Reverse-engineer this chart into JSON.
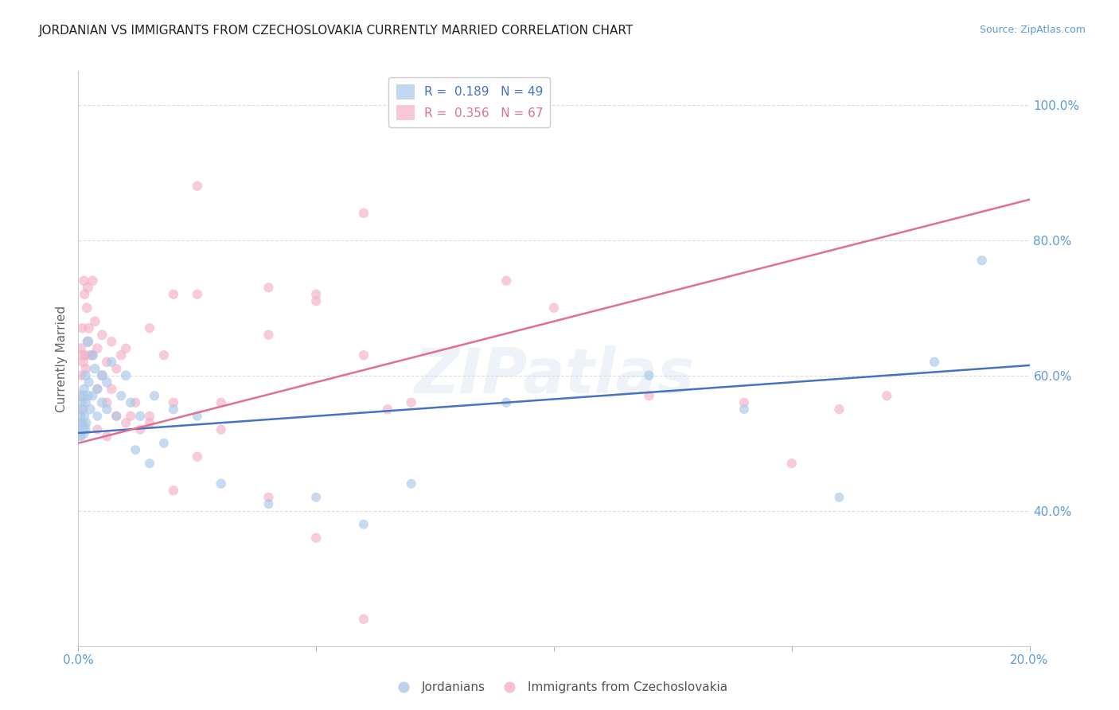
{
  "title": "JORDANIAN VS IMMIGRANTS FROM CZECHOSLOVAKIA CURRENTLY MARRIED CORRELATION CHART",
  "source": "Source: ZipAtlas.com",
  "ylabel": "Currently Married",
  "yticks": [
    0.4,
    0.6,
    0.8,
    1.0
  ],
  "ytick_labels": [
    "40.0%",
    "60.0%",
    "80.0%",
    "100.0%"
  ],
  "legend_title_blue": "Jordanians",
  "legend_title_pink": "Immigrants from Czechoslovakia",
  "blue_color": "#a8c8e8",
  "pink_color": "#f4b0c8",
  "blue_line_color": "#4472c4",
  "pink_line_color": "#e07090",
  "watermark_text": "ZIPatlas",
  "blue_intercept": 0.515,
  "blue_slope": 0.5,
  "pink_intercept": 0.5,
  "pink_slope": 1.8,
  "blue_points_x": [
    0.0002,
    0.0004,
    0.0005,
    0.0006,
    0.0007,
    0.0008,
    0.001,
    0.001,
    0.0012,
    0.0013,
    0.0015,
    0.0016,
    0.0017,
    0.002,
    0.002,
    0.0022,
    0.0025,
    0.003,
    0.003,
    0.0035,
    0.004,
    0.004,
    0.005,
    0.005,
    0.006,
    0.006,
    0.007,
    0.008,
    0.009,
    0.01,
    0.011,
    0.012,
    0.013,
    0.015,
    0.016,
    0.018,
    0.02,
    0.025,
    0.03,
    0.04,
    0.05,
    0.06,
    0.07,
    0.09,
    0.12,
    0.14,
    0.16,
    0.18,
    0.19
  ],
  "blue_points_y": [
    0.52,
    0.54,
    0.51,
    0.55,
    0.53,
    0.56,
    0.52,
    0.57,
    0.58,
    0.54,
    0.6,
    0.56,
    0.53,
    0.65,
    0.57,
    0.59,
    0.55,
    0.63,
    0.57,
    0.61,
    0.54,
    0.58,
    0.56,
    0.6,
    0.55,
    0.59,
    0.62,
    0.54,
    0.57,
    0.6,
    0.56,
    0.49,
    0.54,
    0.47,
    0.57,
    0.5,
    0.55,
    0.54,
    0.44,
    0.41,
    0.42,
    0.38,
    0.44,
    0.56,
    0.6,
    0.55,
    0.42,
    0.62,
    0.77
  ],
  "blue_points_pop": [
    800,
    200,
    150,
    180,
    160,
    140,
    200,
    180,
    160,
    150,
    170,
    160,
    150,
    200,
    180,
    160,
    170,
    180,
    160,
    170,
    150,
    160,
    170,
    180,
    160,
    170,
    160,
    150,
    160,
    170,
    160,
    150,
    160,
    150,
    160,
    150,
    160,
    150,
    160,
    150,
    150,
    150,
    150,
    160,
    160,
    150,
    150,
    160,
    160
  ],
  "pink_points_x": [
    0.0003,
    0.0005,
    0.0006,
    0.0007,
    0.0008,
    0.001,
    0.001,
    0.0012,
    0.0013,
    0.0015,
    0.0016,
    0.0018,
    0.002,
    0.002,
    0.0022,
    0.0025,
    0.003,
    0.003,
    0.0035,
    0.004,
    0.004,
    0.005,
    0.005,
    0.006,
    0.006,
    0.007,
    0.007,
    0.008,
    0.009,
    0.01,
    0.011,
    0.012,
    0.013,
    0.015,
    0.018,
    0.02,
    0.025,
    0.03,
    0.04,
    0.05,
    0.06,
    0.065,
    0.07,
    0.09,
    0.1,
    0.12,
    0.14,
    0.15,
    0.16,
    0.17,
    0.004,
    0.006,
    0.008,
    0.01,
    0.015,
    0.02,
    0.025,
    0.03,
    0.04,
    0.05,
    0.06,
    0.015,
    0.02,
    0.025,
    0.04,
    0.05,
    0.06
  ],
  "pink_points_y": [
    0.57,
    0.64,
    0.6,
    0.63,
    0.67,
    0.62,
    0.55,
    0.74,
    0.72,
    0.63,
    0.61,
    0.7,
    0.73,
    0.65,
    0.67,
    0.63,
    0.74,
    0.63,
    0.68,
    0.58,
    0.64,
    0.6,
    0.66,
    0.56,
    0.62,
    0.65,
    0.58,
    0.61,
    0.63,
    0.64,
    0.54,
    0.56,
    0.52,
    0.53,
    0.63,
    0.56,
    0.72,
    0.56,
    0.66,
    0.71,
    0.63,
    0.55,
    0.56,
    0.74,
    0.7,
    0.57,
    0.56,
    0.47,
    0.55,
    0.57,
    0.52,
    0.51,
    0.54,
    0.53,
    0.54,
    0.43,
    0.48,
    0.52,
    0.42,
    0.36,
    0.24,
    0.67,
    0.72,
    0.88,
    0.73,
    0.72,
    0.84
  ],
  "pink_points_pop": [
    200,
    180,
    160,
    170,
    160,
    180,
    160,
    170,
    160,
    170,
    160,
    170,
    180,
    160,
    170,
    160,
    170,
    160,
    170,
    160,
    170,
    160,
    170,
    160,
    170,
    160,
    170,
    160,
    170,
    160,
    160,
    160,
    160,
    160,
    160,
    160,
    160,
    160,
    160,
    160,
    160,
    160,
    160,
    160,
    160,
    160,
    160,
    160,
    160,
    160,
    160,
    160,
    160,
    160,
    160,
    160,
    160,
    160,
    160,
    160,
    160,
    160,
    160,
    160,
    160,
    160,
    160
  ],
  "xmin": 0.0,
  "xmax": 0.2,
  "ymin": 0.2,
  "ymax": 1.05,
  "xticks": [
    0.0,
    0.05,
    0.1,
    0.15,
    0.2
  ],
  "xtick_labels_show": [
    "0.0%",
    "",
    "",
    "",
    "20.0%"
  ],
  "grid_color": "#dddddd",
  "bg_color": "#ffffff",
  "title_fontsize": 11,
  "tick_color": "#5b9bd5",
  "axis_tick_fontsize": 11
}
